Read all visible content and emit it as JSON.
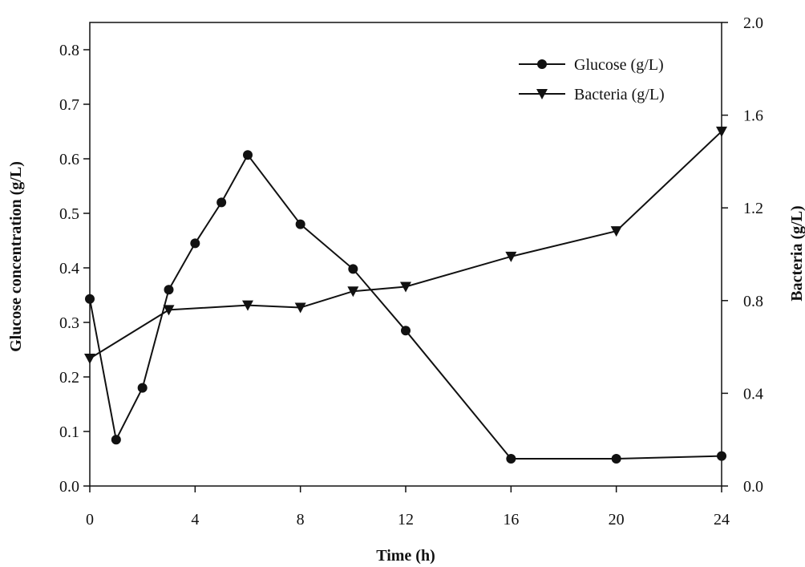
{
  "chart_data": {
    "type": "line",
    "title": "",
    "xlabel": "Time (h)",
    "ylabel_left": "Glucose concentration (g/L)",
    "ylabel_right": "Bacteria (g/L)",
    "xlim": [
      0,
      24
    ],
    "ylim_left": [
      0,
      0.85
    ],
    "ylim_right": [
      0,
      2.0
    ],
    "x_ticks": [
      0,
      4,
      8,
      12,
      16,
      20,
      24
    ],
    "y_left_ticks": [
      "0.0",
      "0.1",
      "0.2",
      "0.3",
      "0.4",
      "0.5",
      "0.6",
      "0.7",
      "0.8"
    ],
    "y_right_ticks": [
      "0.0",
      "0.4",
      "0.8",
      "1.2",
      "1.6",
      "2.0"
    ],
    "grid": false,
    "legend_position": "top-right",
    "series": [
      {
        "name": "Glucose (g/L)",
        "axis": "left",
        "marker": "circle",
        "color": "#111111",
        "x": [
          0,
          1,
          2,
          3,
          4,
          5,
          6,
          8,
          10,
          12,
          16,
          20,
          24
        ],
        "y": [
          0.343,
          0.085,
          0.18,
          0.36,
          0.445,
          0.52,
          0.607,
          0.48,
          0.398,
          0.285,
          0.05,
          0.05,
          0.055
        ]
      },
      {
        "name": "Bacteria (g/L)",
        "axis": "right",
        "marker": "triangle-down",
        "color": "#111111",
        "x": [
          0,
          3,
          6,
          8,
          10,
          12,
          16,
          20,
          24
        ],
        "y": [
          0.55,
          0.76,
          0.78,
          0.77,
          0.84,
          0.86,
          0.99,
          1.1,
          1.53
        ]
      }
    ]
  }
}
